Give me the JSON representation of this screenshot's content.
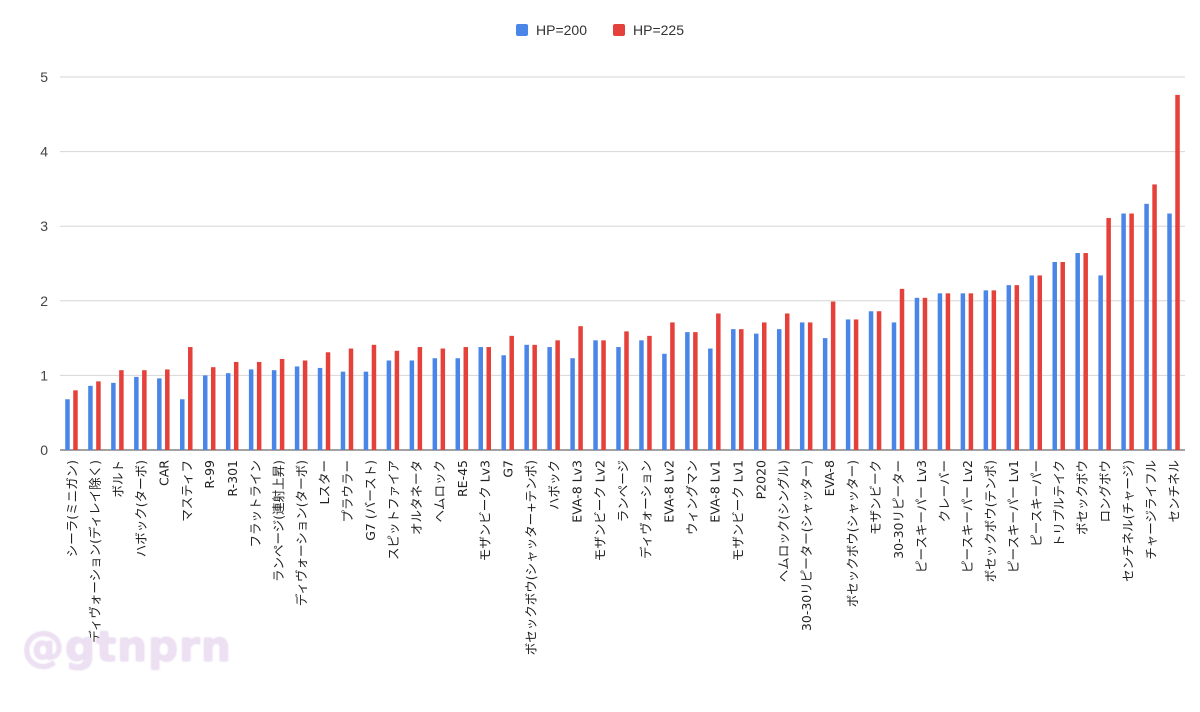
{
  "legend": {
    "items": [
      {
        "label": "HP=200",
        "color": "#4a86e8"
      },
      {
        "label": "HP=225",
        "color": "#e5403a"
      }
    ]
  },
  "watermark": "@gtnprn",
  "chart_data": {
    "type": "bar",
    "title": "",
    "xlabel": "",
    "ylabel": "",
    "ylim": [
      0,
      5
    ],
    "yticks": [
      0,
      1,
      2,
      3,
      4,
      5
    ],
    "grid": true,
    "legend_position": "top",
    "categories": [
      "シーラ(ミニガン)",
      "ディヴォーション(ディレイ除く)",
      "ボルト",
      "ハボック(ターボ)",
      "CAR",
      "マスティフ",
      "R-99",
      "R-301",
      "フラットライン",
      "ランページ(連射上昇)",
      "ディヴォーション(ターボ)",
      "Lスター",
      "プラウラー",
      "G7 (バースト)",
      "スピットファイア",
      "オルタネータ",
      "ヘムロック",
      "RE-45",
      "モザンビーク Lv3",
      "G7",
      "ボセックボウ(シャッター+テンポ)",
      "ハボック",
      "EVA-8 Lv3",
      "モザンビーク Lv2",
      "ランページ",
      "ディヴォーション",
      "EVA-8 Lv2",
      "ウィングマン",
      "EVA-8 Lv1",
      "モザンビーク Lv1",
      "P2020",
      "ヘムロック(シングル)",
      "30-30リピーター(シャッター)",
      "EVA-8",
      "ボセックボウ(シャッター)",
      "モザンビーク",
      "30-30リピーター",
      "ピースキーパー Lv3",
      "クレーバー",
      "ピースキーパー Lv2",
      "ボセックボウ(テンポ)",
      "ピースキーパー Lv1",
      "ピースキーパー",
      "トリプルテイク",
      "ボセックボウ",
      "ロングボウ",
      "センチネル(チャージ)",
      "チャージライフル",
      "センチネル"
    ],
    "series": [
      {
        "name": "HP=200",
        "color": "#4a86e8",
        "values": [
          0.68,
          0.86,
          0.9,
          0.98,
          0.96,
          0.68,
          1.0,
          1.03,
          1.08,
          1.07,
          1.12,
          1.1,
          1.05,
          1.05,
          1.2,
          1.2,
          1.23,
          1.23,
          1.38,
          1.27,
          1.41,
          1.38,
          1.23,
          1.47,
          1.38,
          1.47,
          1.29,
          1.58,
          1.36,
          1.62,
          1.56,
          1.62,
          1.71,
          1.5,
          1.75,
          1.86,
          1.71,
          2.04,
          2.1,
          2.1,
          2.14,
          2.21,
          2.34,
          2.52,
          2.64,
          2.34,
          3.17,
          3.3,
          3.17
        ]
      },
      {
        "name": "HP=225",
        "color": "#e5403a",
        "values": [
          0.8,
          0.92,
          1.07,
          1.07,
          1.08,
          1.38,
          1.11,
          1.18,
          1.18,
          1.22,
          1.2,
          1.31,
          1.36,
          1.41,
          1.33,
          1.38,
          1.36,
          1.38,
          1.38,
          1.53,
          1.41,
          1.47,
          1.66,
          1.47,
          1.59,
          1.53,
          1.71,
          1.58,
          1.83,
          1.62,
          1.71,
          1.83,
          1.71,
          1.99,
          1.75,
          1.86,
          2.16,
          2.04,
          2.1,
          2.1,
          2.14,
          2.21,
          2.34,
          2.52,
          2.64,
          3.11,
          3.17,
          3.56,
          4.76
        ]
      }
    ]
  }
}
